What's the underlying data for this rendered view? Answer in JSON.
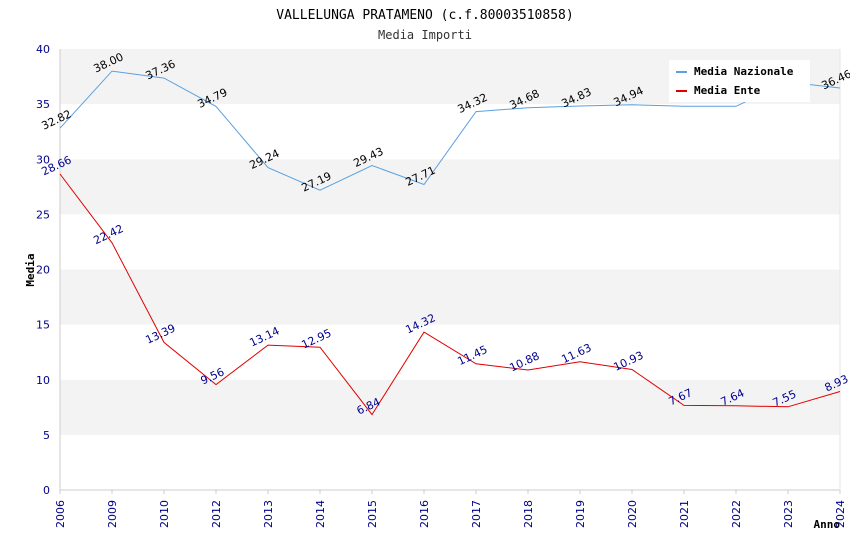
{
  "chart_data": {
    "type": "line",
    "title": "VALLELUNGA PRATAMENO (c.f.80003510858)",
    "subtitle": "Media Importi",
    "xlabel": "Anno",
    "ylabel": "Media",
    "ylim": [
      0,
      40
    ],
    "yticks": [
      "0",
      "5",
      "10",
      "15",
      "20",
      "25",
      "30",
      "35",
      "40"
    ],
    "grid": true,
    "legend_position": "top-right",
    "categories": [
      "2006",
      "2009",
      "2010",
      "2012",
      "2013",
      "2014",
      "2015",
      "2016",
      "2017",
      "2018",
      "2019",
      "2020",
      "2021",
      "2022",
      "2023",
      "2024"
    ],
    "series": [
      {
        "name": "Media Nazionale",
        "color": "#5aa0e0",
        "values": [
          32.82,
          38.0,
          37.36,
          34.79,
          29.24,
          27.19,
          29.43,
          27.71,
          34.32,
          34.68,
          34.83,
          34.94,
          34.8,
          34.8,
          37.0,
          36.46
        ],
        "labels": [
          "32.82",
          "38.00",
          "37.36",
          "34.79",
          "29.24",
          "27.19",
          "29.43",
          "27.71",
          "34.32",
          "34.68",
          "34.83",
          "34.94",
          "",
          "",
          "",
          "36.46"
        ]
      },
      {
        "name": "Media Ente",
        "color": "#e00000",
        "values": [
          28.66,
          22.42,
          13.39,
          9.56,
          13.14,
          12.95,
          6.84,
          14.32,
          11.45,
          10.88,
          11.63,
          10.93,
          7.67,
          7.64,
          7.55,
          8.93
        ],
        "labels": [
          "28.66",
          "22.42",
          "13.39",
          "9.56",
          "13.14",
          "12.95",
          "6.84",
          "14.32",
          "11.45",
          "10.88",
          "11.63",
          "10.93",
          "7.67",
          "7.64",
          "7.55",
          "8.93"
        ]
      }
    ]
  }
}
